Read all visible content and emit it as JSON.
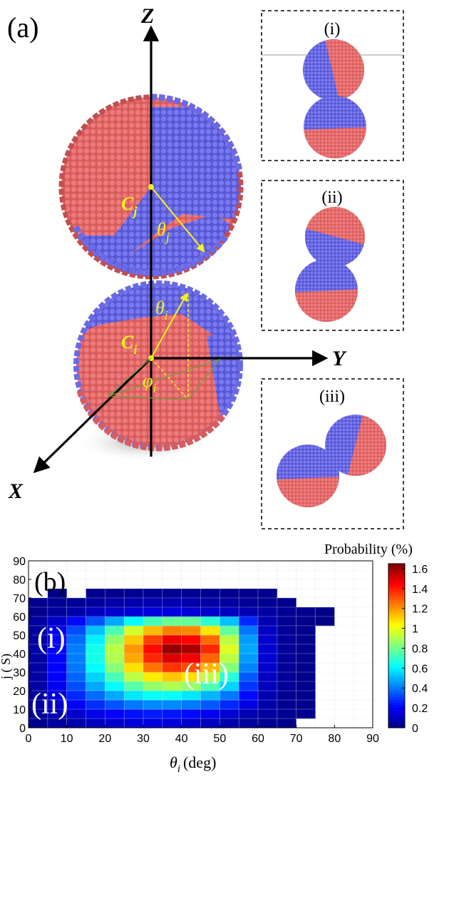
{
  "panel_a": {
    "label": "(a)",
    "axes": {
      "z": "Z",
      "y": "Y",
      "x": "X"
    },
    "annotations": {
      "cj": "C",
      "cj_sub": "j",
      "ci": "C",
      "ci_sub": "i",
      "theta_j": "θ",
      "theta_j_sub": "j",
      "theta_i": "θ",
      "theta_i_sub": "i",
      "phi_i": "φ",
      "phi_i_sub": "i"
    },
    "colors": {
      "red_patch": "#e06666",
      "blue_patch": "#6b6be8",
      "annotation": "#f2f21e"
    },
    "insets": [
      {
        "label": "(i)"
      },
      {
        "label": "(ii)"
      },
      {
        "label": "(iii)"
      }
    ]
  },
  "panel_b": {
    "label": "(b)",
    "region_labels": {
      "i": "(i)",
      "ii": "(ii)",
      "iii": "(iii)"
    },
    "xlabel": "θ",
    "xlabel_sub": "i",
    "xlabel_unit": "(deg)",
    "ylabel_visible": "j (  S)",
    "colorbar_title": "Probability (%)"
  },
  "chart_data": {
    "type": "heatmap",
    "x_ticks": [
      0,
      10,
      20,
      30,
      40,
      50,
      60,
      70,
      80,
      90
    ],
    "y_ticks": [
      0,
      10,
      20,
      30,
      40,
      50,
      60,
      70,
      80,
      90
    ],
    "xlim": [
      0,
      90
    ],
    "ylim": [
      0,
      90
    ],
    "bin_size": 5,
    "colorbar_ticks": [
      0,
      0.2,
      0.4,
      0.6,
      0.8,
      1,
      1.2,
      1.4,
      1.6
    ],
    "clim": [
      0,
      1.65
    ],
    "colormap": "jet",
    "grid": true,
    "comment_rows": "z[row][col], row 0 = theta_j 0-5, col 0 = theta_i 0-5; null = empty (white)",
    "z": [
      [
        0.02,
        0.05,
        0.07,
        0.1,
        0.12,
        0.14,
        0.15,
        0.14,
        0.12,
        0.1,
        0.07,
        0.05,
        0.03,
        0.02,
        null,
        null,
        null,
        null
      ],
      [
        0.04,
        0.08,
        0.12,
        0.17,
        0.2,
        0.23,
        0.25,
        0.24,
        0.22,
        0.18,
        0.13,
        0.08,
        0.05,
        0.03,
        0.02,
        null,
        null,
        null
      ],
      [
        0.05,
        0.12,
        0.2,
        0.28,
        0.34,
        0.4,
        0.43,
        0.43,
        0.4,
        0.35,
        0.27,
        0.16,
        0.07,
        0.03,
        0.02,
        null,
        null,
        null
      ],
      [
        0.05,
        0.15,
        0.27,
        0.38,
        0.48,
        0.58,
        0.63,
        0.63,
        0.58,
        0.5,
        0.4,
        0.22,
        0.08,
        0.03,
        0.02,
        null,
        null,
        null
      ],
      [
        0.06,
        0.18,
        0.33,
        0.48,
        0.62,
        0.76,
        0.86,
        0.9,
        0.86,
        0.74,
        0.55,
        0.29,
        0.1,
        0.04,
        0.02,
        null,
        null,
        null
      ],
      [
        0.06,
        0.2,
        0.37,
        0.55,
        0.74,
        0.92,
        1.06,
        1.12,
        1.08,
        0.93,
        0.68,
        0.35,
        0.11,
        0.04,
        0.02,
        null,
        null,
        null
      ],
      [
        0.06,
        0.21,
        0.4,
        0.62,
        0.84,
        1.08,
        1.26,
        1.36,
        1.32,
        1.15,
        0.83,
        0.42,
        0.12,
        0.04,
        0.02,
        null,
        null,
        null
      ],
      [
        0.06,
        0.21,
        0.41,
        0.65,
        0.9,
        1.17,
        1.38,
        1.5,
        1.46,
        1.28,
        0.92,
        0.46,
        0.13,
        0.04,
        0.02,
        null,
        null,
        null
      ],
      [
        0.06,
        0.21,
        0.41,
        0.65,
        0.92,
        1.2,
        1.43,
        1.62,
        1.58,
        1.38,
        0.98,
        0.48,
        0.13,
        0.04,
        0.02,
        null,
        null,
        null
      ],
      [
        0.06,
        0.2,
        0.38,
        0.6,
        0.86,
        1.12,
        1.34,
        1.47,
        1.44,
        1.27,
        0.92,
        0.46,
        0.12,
        0.04,
        0.02,
        null,
        null,
        null
      ],
      [
        0.05,
        0.18,
        0.33,
        0.52,
        0.74,
        0.96,
        1.14,
        1.24,
        1.22,
        1.07,
        0.78,
        0.4,
        0.11,
        0.04,
        0.02,
        null,
        null,
        null
      ],
      [
        0.05,
        0.12,
        0.22,
        0.34,
        0.48,
        0.62,
        0.73,
        0.79,
        0.78,
        0.69,
        0.52,
        0.27,
        0.08,
        0.03,
        0.02,
        0.01,
        null,
        null
      ],
      [
        0.02,
        0.05,
        0.07,
        0.1,
        0.12,
        0.14,
        0.15,
        0.15,
        0.14,
        0.12,
        0.1,
        0.08,
        0.06,
        0.03,
        0.02,
        0.01,
        null,
        null
      ],
      [
        0.02,
        0.03,
        0.04,
        0.05,
        0.06,
        0.07,
        0.08,
        0.08,
        0.07,
        0.06,
        0.05,
        0.04,
        0.03,
        0.02,
        null,
        null,
        null,
        null
      ],
      [
        null,
        0.02,
        null,
        0.02,
        0.02,
        0.03,
        0.03,
        0.03,
        0.03,
        0.03,
        0.02,
        0.02,
        0.02,
        null,
        null,
        null,
        null,
        null
      ],
      [
        null,
        null,
        null,
        null,
        null,
        null,
        null,
        null,
        null,
        null,
        null,
        null,
        null,
        null,
        null,
        null,
        null,
        null
      ],
      [
        null,
        null,
        null,
        null,
        null,
        null,
        null,
        null,
        null,
        null,
        null,
        null,
        null,
        null,
        null,
        null,
        null,
        null
      ],
      [
        null,
        null,
        null,
        null,
        null,
        null,
        null,
        null,
        null,
        null,
        null,
        null,
        null,
        null,
        null,
        null,
        null,
        null
      ]
    ]
  }
}
